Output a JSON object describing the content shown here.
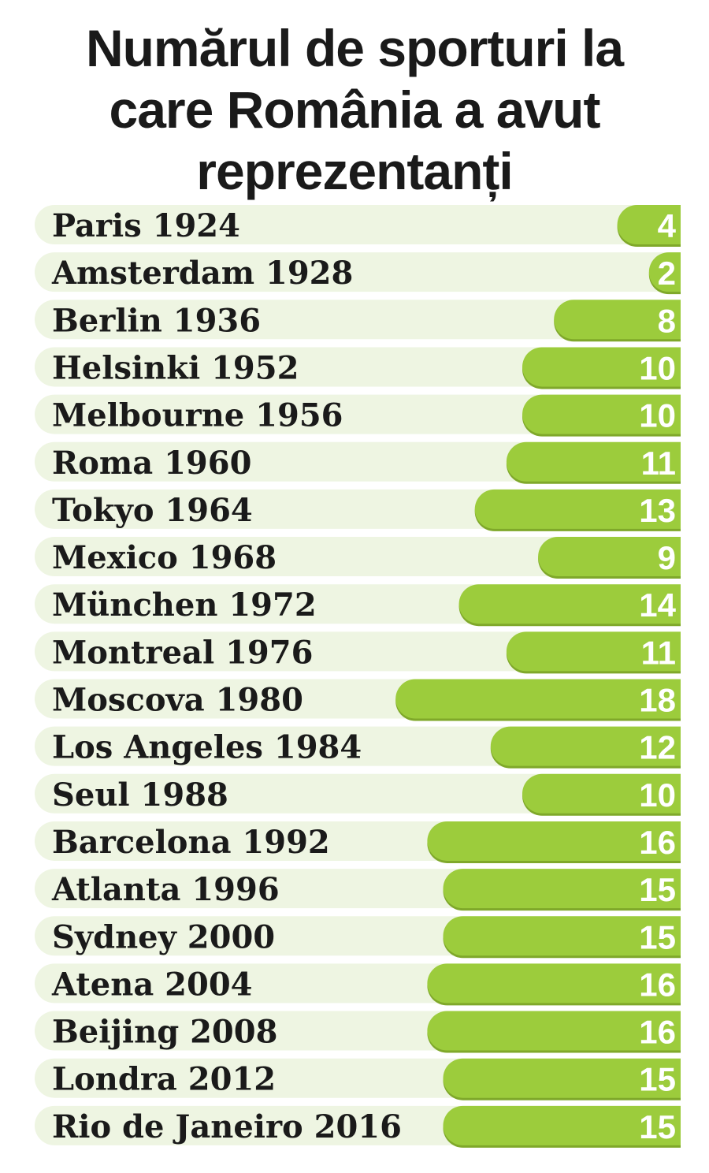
{
  "chart_data": {
    "type": "bar",
    "orientation": "horizontal",
    "title_lines": [
      "Numărul de sporturi la",
      "care România a avut",
      "reprezentanți"
    ],
    "categories": [
      "Paris 1924",
      "Amsterdam 1928",
      "Berlin 1936",
      "Helsinki 1952",
      "Melbourne 1956",
      "Roma 1960",
      "Tokyo 1964",
      "Mexico 1968",
      "München 1972",
      "Montreal 1976",
      "Moscova 1980",
      "Los Angeles 1984",
      "Seul 1988",
      "Barcelona 1992",
      "Atlanta 1996",
      "Sydney 2000",
      "Atena 2004",
      "Beijing 2008",
      "Londra 2012",
      "Rio de Janeiro 2016"
    ],
    "values": [
      4,
      2,
      8,
      10,
      10,
      11,
      13,
      9,
      14,
      11,
      18,
      12,
      10,
      16,
      15,
      15,
      16,
      16,
      15,
      15
    ],
    "xlim": [
      0,
      40
    ],
    "grid": false,
    "legend": "none",
    "colors": {
      "bar": "#9ccc3c",
      "bar_shadow": "#7fa82a",
      "track": "#eef5e2",
      "text": "#1a1a1a",
      "value_text": "#ffffff"
    }
  }
}
